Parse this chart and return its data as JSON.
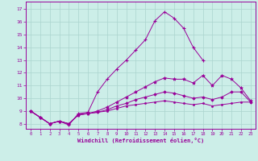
{
  "xlabel": "Windchill (Refroidissement éolien,°C)",
  "xlim": [
    -0.5,
    23.5
  ],
  "ylim": [
    7.6,
    17.6
  ],
  "xticks": [
    0,
    1,
    2,
    3,
    4,
    5,
    6,
    7,
    8,
    9,
    10,
    11,
    12,
    13,
    14,
    15,
    16,
    17,
    18,
    19,
    20,
    21,
    22,
    23
  ],
  "yticks": [
    8,
    9,
    10,
    11,
    12,
    13,
    14,
    15,
    16,
    17
  ],
  "background_color": "#cceee8",
  "grid_color": "#aad4ce",
  "line_color": "#990099",
  "lines": [
    {
      "x": [
        0,
        1,
        2,
        3,
        4,
        5,
        6,
        7,
        8,
        9,
        10,
        11,
        12,
        13,
        14,
        15,
        16,
        17,
        18
      ],
      "y": [
        9.0,
        8.5,
        8.0,
        8.2,
        7.9,
        8.8,
        8.9,
        10.5,
        11.5,
        12.3,
        13.0,
        13.8,
        14.6,
        16.1,
        16.8,
        16.3,
        15.5,
        14.0,
        13.0
      ],
      "marker": "+"
    },
    {
      "x": [
        0,
        1,
        2,
        3,
        4,
        5,
        6,
        7,
        8,
        9,
        10,
        11,
        12,
        13,
        14,
        15,
        16,
        17,
        18,
        19,
        20,
        21,
        22,
        23
      ],
      "y": [
        9.0,
        8.5,
        8.0,
        8.2,
        8.0,
        8.7,
        8.8,
        9.0,
        9.3,
        9.7,
        10.1,
        10.5,
        10.9,
        11.3,
        11.6,
        11.5,
        11.5,
        11.2,
        11.8,
        11.0,
        11.8,
        11.5,
        10.8,
        9.8
      ],
      "marker": "*"
    },
    {
      "x": [
        0,
        1,
        2,
        3,
        4,
        5,
        6,
        7,
        8,
        9,
        10,
        11,
        12,
        13,
        14,
        15,
        16,
        17,
        18,
        19,
        20,
        21,
        22,
        23
      ],
      "y": [
        9.0,
        8.5,
        8.0,
        8.2,
        8.0,
        8.7,
        8.8,
        8.9,
        9.1,
        9.4,
        9.6,
        9.9,
        10.1,
        10.3,
        10.5,
        10.4,
        10.2,
        10.0,
        10.1,
        9.9,
        10.1,
        10.5,
        10.5,
        9.7
      ],
      "marker": "D"
    },
    {
      "x": [
        0,
        1,
        2,
        3,
        4,
        5,
        6,
        7,
        8,
        9,
        10,
        11,
        12,
        13,
        14,
        15,
        16,
        17,
        18,
        19,
        20,
        21,
        22,
        23
      ],
      "y": [
        9.0,
        8.5,
        8.0,
        8.2,
        8.0,
        8.7,
        8.8,
        8.9,
        9.0,
        9.2,
        9.4,
        9.5,
        9.6,
        9.7,
        9.8,
        9.7,
        9.6,
        9.5,
        9.6,
        9.4,
        9.5,
        9.6,
        9.7,
        9.7
      ],
      "marker": "o"
    }
  ]
}
